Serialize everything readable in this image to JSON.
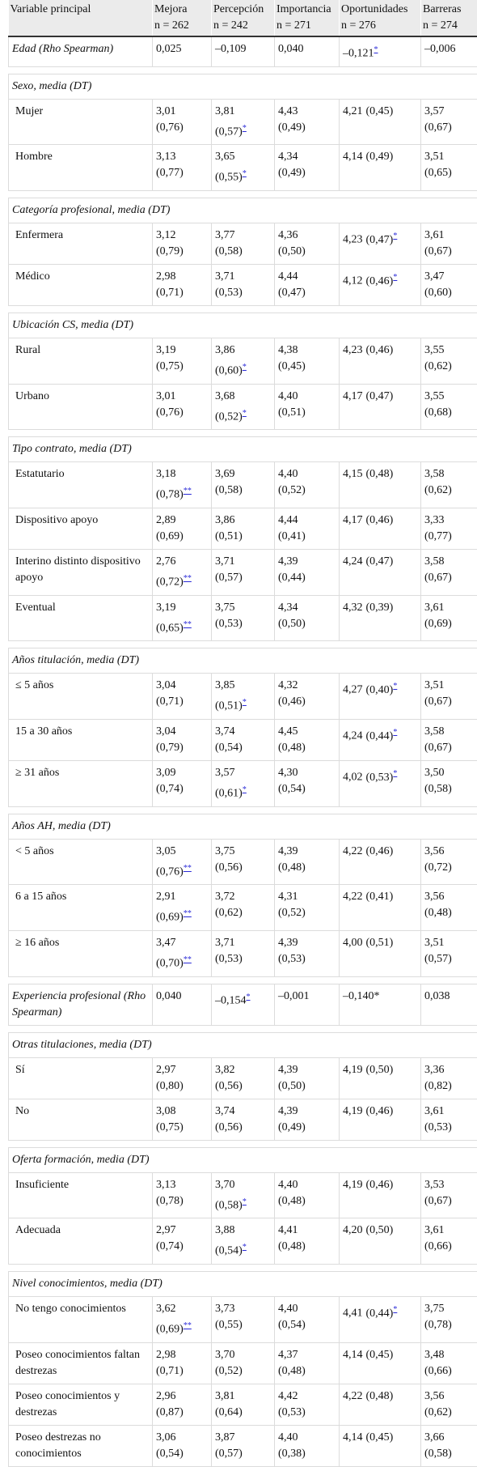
{
  "table": {
    "header": [
      {
        "name": "Variable principal"
      },
      {
        "name": "Mejora",
        "n": "n = 262"
      },
      {
        "name": "Percepción",
        "n": "n = 242"
      },
      {
        "name": "Importancia",
        "n": "n = 271"
      },
      {
        "name": "Oportunidades",
        "n": "n = 276"
      },
      {
        "name": "Barreras",
        "n": "n = 274"
      }
    ],
    "groups": [
      {
        "label": "Edad (Rho Spearman)",
        "cells": [
          [
            "0,025"
          ],
          [
            "–0,109"
          ],
          [
            "0,040"
          ],
          [
            "–0,121",
            null,
            "*"
          ],
          [
            "–0,006"
          ]
        ]
      },
      {
        "title": "Sexo, media (DT)",
        "rows": [
          {
            "label": "Mujer",
            "cells": [
              [
                "3,01",
                "(0,76)"
              ],
              [
                "3,81",
                "(0,57)",
                "*"
              ],
              [
                "4,43",
                "(0,49)"
              ],
              [
                "4,21",
                "(0,45)"
              ],
              [
                "3,57",
                "(0,67)"
              ]
            ]
          },
          {
            "label": "Hombre",
            "cells": [
              [
                "3,13",
                "(0,77)"
              ],
              [
                "3,65",
                "(0,55)",
                "*"
              ],
              [
                "4,34",
                "(0,49)"
              ],
              [
                "4,14",
                "(0,49)"
              ],
              [
                "3,51",
                "(0,65)"
              ]
            ]
          }
        ]
      },
      {
        "title": "Categoría profesional, media (DT)",
        "rows": [
          {
            "label": "Enfermera",
            "cells": [
              [
                "3,12",
                "(0,79)"
              ],
              [
                "3,77",
                "(0,58)"
              ],
              [
                "4,36",
                "(0,50)"
              ],
              [
                "4,23",
                "(0,47)",
                "*"
              ],
              [
                "3,61",
                "(0,67)"
              ]
            ]
          },
          {
            "label": "Médico",
            "cells": [
              [
                "2,98",
                "(0,71)"
              ],
              [
                "3,71",
                "(0,53)"
              ],
              [
                "4,44",
                "(0,47)"
              ],
              [
                "4,12",
                "(0,46)",
                "*"
              ],
              [
                "3,47",
                "(0,60)"
              ]
            ]
          }
        ]
      },
      {
        "title": "Ubicación CS, media (DT)",
        "rows": [
          {
            "label": "Rural",
            "cells": [
              [
                "3,19",
                "(0,75)"
              ],
              [
                "3,86",
                "(0,60)",
                "*"
              ],
              [
                "4,38",
                "(0,45)"
              ],
              [
                "4,23",
                "(0,46)"
              ],
              [
                "3,55",
                "(0,62)"
              ]
            ]
          },
          {
            "label": "Urbano",
            "cells": [
              [
                "3,01",
                "(0,76)"
              ],
              [
                "3,68",
                "(0,52)",
                "*"
              ],
              [
                "4,40",
                "(0,51)"
              ],
              [
                "4,17",
                "(0,47)"
              ],
              [
                "3,55",
                "(0,68)"
              ]
            ]
          }
        ]
      },
      {
        "title": "Tipo contrato, media (DT)",
        "rows": [
          {
            "label": "Estatutario",
            "cells": [
              [
                "3,18",
                "(0,78)",
                "**"
              ],
              [
                "3,69",
                "(0,58)"
              ],
              [
                "4,40",
                "(0,52)"
              ],
              [
                "4,15",
                "(0,48)"
              ],
              [
                "3,58",
                "(0,62)"
              ]
            ]
          },
          {
            "label": "Dispositivo apoyo",
            "cells": [
              [
                "2,89",
                "(0,69)"
              ],
              [
                "3,86",
                "(0,51)"
              ],
              [
                "4,44",
                "(0,41)"
              ],
              [
                "4,17",
                "(0,46)"
              ],
              [
                "3,33",
                "(0,77)"
              ]
            ]
          },
          {
            "label": "Interino distinto dispositivo apoyo",
            "cells": [
              [
                "2,76",
                "(0,72)",
                "**"
              ],
              [
                "3,71",
                "(0,57)"
              ],
              [
                "4,39",
                "(0,44)"
              ],
              [
                "4,24",
                "(0,47)"
              ],
              [
                "3,58",
                "(0,67)"
              ]
            ]
          },
          {
            "label": "Eventual",
            "cells": [
              [
                "3,19",
                "(0,65)",
                "**"
              ],
              [
                "3,75",
                "(0,53)"
              ],
              [
                "4,34",
                "(0,50)"
              ],
              [
                "4,32",
                "(0,39)"
              ],
              [
                "3,61",
                "(0,69)"
              ]
            ]
          }
        ]
      },
      {
        "title": "Años titulación, media (DT)",
        "rows": [
          {
            "label": "≤ 5 años",
            "cells": [
              [
                "3,04",
                "(0,71)"
              ],
              [
                "3,85",
                "(0,51)",
                "*"
              ],
              [
                "4,32",
                "(0,46)"
              ],
              [
                "4,27",
                "(0,40)",
                "*"
              ],
              [
                "3,51",
                "(0,67)"
              ]
            ]
          },
          {
            "label": "15 a 30 años",
            "cells": [
              [
                "3,04",
                "(0,79)"
              ],
              [
                "3,74",
                "(0,54)"
              ],
              [
                "4,45",
                "(0,48)"
              ],
              [
                "4,24",
                "(0,44)",
                "*"
              ],
              [
                "3,58",
                "(0,67)"
              ]
            ]
          },
          {
            "label": "≥ 31 años",
            "cells": [
              [
                "3,09",
                "(0,74)"
              ],
              [
                "3,57",
                "(0,61)",
                "*"
              ],
              [
                "4,30",
                "(0,54)"
              ],
              [
                "4,02",
                "(0,53)",
                "*"
              ],
              [
                "3,50",
                "(0,58)"
              ]
            ]
          }
        ]
      },
      {
        "title": "Años AH, media (DT)",
        "rows": [
          {
            "label": "< 5 años",
            "cells": [
              [
                "3,05",
                "(0,76)",
                "**"
              ],
              [
                "3,75",
                "(0,56)"
              ],
              [
                "4,39",
                "(0,48)"
              ],
              [
                "4,22",
                "(0,46)"
              ],
              [
                "3,56",
                "(0,72)"
              ]
            ]
          },
          {
            "label": "6 a 15 años",
            "cells": [
              [
                "2,91",
                "(0,69)",
                "**"
              ],
              [
                "3,72",
                "(0,62)"
              ],
              [
                "4,31",
                "(0,52)"
              ],
              [
                "4,22",
                "(0,41)"
              ],
              [
                "3,56",
                "(0,48)"
              ]
            ]
          },
          {
            "label": "≥ 16 años",
            "cells": [
              [
                "3,47",
                "(0,70)",
                "**"
              ],
              [
                "3,71",
                "(0,53)"
              ],
              [
                "4,39",
                "(0,53)"
              ],
              [
                "4,00",
                "(0,51)"
              ],
              [
                "3,51",
                "(0,57)"
              ]
            ]
          }
        ]
      },
      {
        "label": "Experiencia profesional (Rho Spearman)",
        "cells": [
          [
            "0,040"
          ],
          [
            "–0,154",
            null,
            "*"
          ],
          [
            "–0,001"
          ],
          [
            "–0,140*"
          ],
          [
            "0,038"
          ]
        ]
      },
      {
        "title": "Otras titulaciones, media (DT)",
        "rows": [
          {
            "label": "Sí",
            "cells": [
              [
                "2,97",
                "(0,80)"
              ],
              [
                "3,82",
                "(0,56)"
              ],
              [
                "4,39",
                "(0,50)"
              ],
              [
                "4,19",
                "(0,50)"
              ],
              [
                "3,36",
                "(0,82)"
              ]
            ]
          },
          {
            "label": "No",
            "cells": [
              [
                "3,08",
                "(0,75)"
              ],
              [
                "3,74",
                "(0,56)"
              ],
              [
                "4,39",
                "(0,49)"
              ],
              [
                "4,19",
                "(0,46)"
              ],
              [
                "3,61",
                "(0,53)"
              ]
            ]
          }
        ]
      },
      {
        "title": "Oferta formación, media (DT)",
        "rows": [
          {
            "label": "Insuficiente",
            "cells": [
              [
                "3,13",
                "(0,78)"
              ],
              [
                "3,70",
                "(0,58)",
                "*"
              ],
              [
                "4,40",
                "(0,48)"
              ],
              [
                "4,19",
                "(0,46)"
              ],
              [
                "3,53",
                "(0,67)"
              ]
            ]
          },
          {
            "label": "Adecuada",
            "cells": [
              [
                "2,97",
                "(0,74)"
              ],
              [
                "3,88",
                "(0,54)",
                "*"
              ],
              [
                "4,41",
                "(0,48)"
              ],
              [
                "4,20",
                "(0,50)"
              ],
              [
                "3,61",
                "(0,66)"
              ]
            ]
          }
        ]
      },
      {
        "title": "Nivel conocimientos, media (DT)",
        "rows": [
          {
            "label": "No tengo conocimientos",
            "cells": [
              [
                "3,62",
                "(0,69)",
                "**"
              ],
              [
                "3,73",
                "(0,55)"
              ],
              [
                "4,40",
                "(0,54)"
              ],
              [
                "4,41",
                "(0,44)",
                "*"
              ],
              [
                "3,75",
                "(0,78)"
              ]
            ]
          },
          {
            "label": "Poseo conocimientos faltan destrezas",
            "cells": [
              [
                "2,98",
                "(0,71)"
              ],
              [
                "3,70",
                "(0,52)"
              ],
              [
                "4,37",
                "(0,48)"
              ],
              [
                "4,14",
                "(0,45)"
              ],
              [
                "3,48",
                "(0,66)"
              ]
            ]
          },
          {
            "label": "Poseo conocimientos y destrezas",
            "cells": [
              [
                "2,96",
                "(0,87)"
              ],
              [
                "3,81",
                "(0,64)"
              ],
              [
                "4,42",
                "(0,53)"
              ],
              [
                "4,22",
                "(0,48)"
              ],
              [
                "3,56",
                "(0,62)"
              ]
            ]
          },
          {
            "label": "Poseo destrezas no conocimientos",
            "cells": [
              [
                "3,06",
                "(0,54)"
              ],
              [
                "3,87",
                "(0,57)"
              ],
              [
                "4,40",
                "(0,38)"
              ],
              [
                "4,14",
                "(0,45)"
              ],
              [
                "3,66",
                "(0,58)"
              ]
            ]
          }
        ]
      }
    ]
  }
}
